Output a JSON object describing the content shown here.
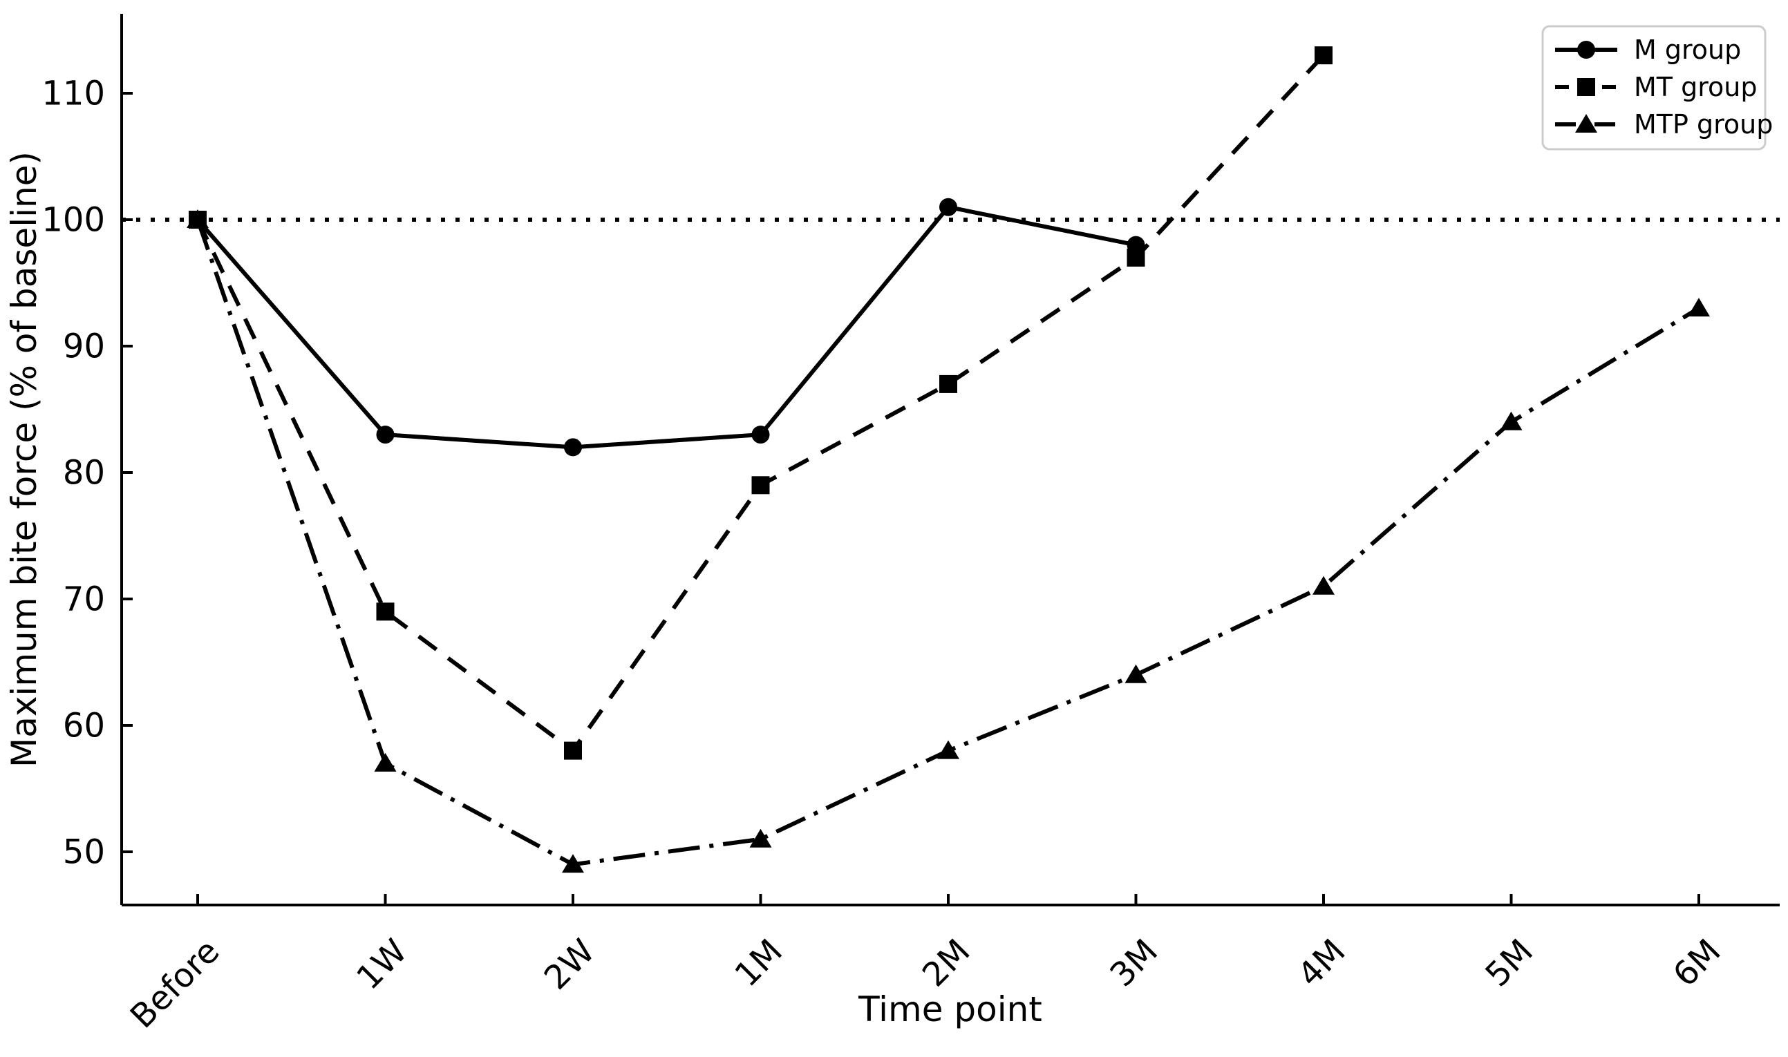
{
  "figure": {
    "background": "#ffffff",
    "ink_color": "#000000",
    "legend_border_color": "#cccccc"
  },
  "chart_data": {
    "type": "line",
    "title": "",
    "xlabel": "Time point",
    "ylabel": "Maximum bite force (% of baseline)",
    "categories": [
      "Before",
      "1W",
      "2W",
      "1M",
      "2M",
      "3M",
      "4M",
      "5M",
      "6M"
    ],
    "y_ticks": [
      50,
      60,
      70,
      80,
      90,
      100,
      110
    ],
    "ylim": [
      45.5,
      116.5
    ],
    "grid": false,
    "legend_position": "upper right",
    "baseline": {
      "value": 100,
      "style": "dotted"
    },
    "series": [
      {
        "name": "M group",
        "marker": "circle",
        "line_style": "solid",
        "values": [
          100,
          83,
          82,
          83,
          101,
          98,
          null,
          null,
          null
        ]
      },
      {
        "name": "MT group",
        "marker": "square",
        "line_style": "dashed",
        "values": [
          100,
          69,
          58,
          79,
          87,
          97,
          113,
          null,
          null
        ]
      },
      {
        "name": "MTP group",
        "marker": "triangle",
        "line_style": "dashdot",
        "values": [
          100,
          57,
          49,
          51,
          58,
          64,
          71,
          84,
          93
        ]
      }
    ]
  }
}
